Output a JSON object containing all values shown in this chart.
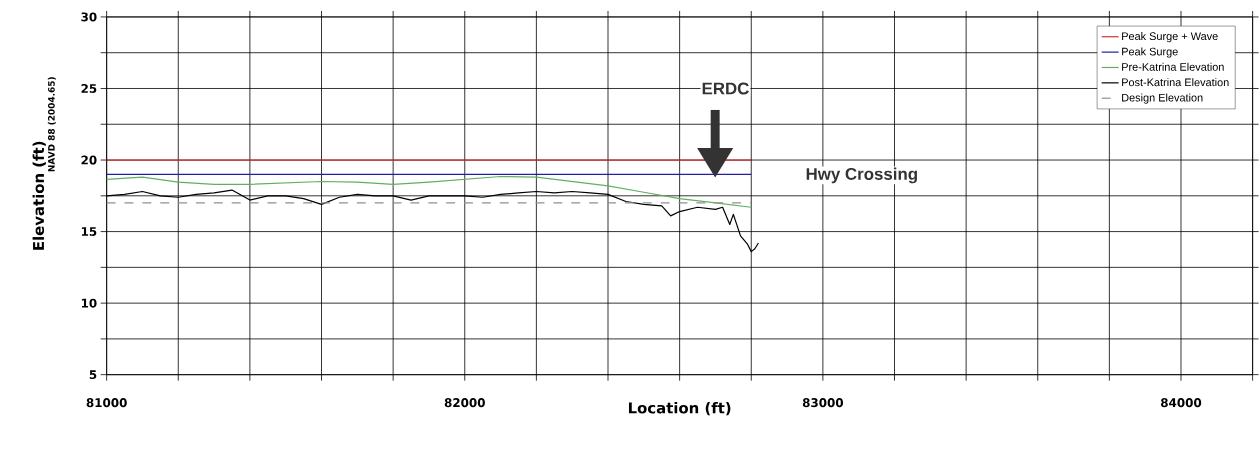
{
  "chart_data": {
    "type": "line",
    "xlabel": "Location (ft)",
    "ylabel": "Elevation (ft)",
    "annotations": [
      "NAVD 88 (2004.65)",
      "ERDC",
      "Hwy Crossing"
    ],
    "xlim": [
      81000,
      84200
    ],
    "ylim": [
      5,
      30
    ],
    "xticks": [
      81000,
      {
        "value": 81200,
        "label": null
      },
      {
        "value": 81400,
        "label": null
      },
      {
        "value": 81600,
        "label": null
      },
      {
        "value": 81800,
        "label": null
      },
      82000,
      {
        "value": 82200,
        "label": null
      },
      {
        "value": 82400,
        "label": null
      },
      {
        "value": 82600,
        "label": null
      },
      {
        "value": 82800,
        "label": null
      },
      83000,
      {
        "value": 83200,
        "label": null
      },
      {
        "value": 83400,
        "label": null
      },
      {
        "value": 83600,
        "label": null
      },
      {
        "value": 83800,
        "label": null
      },
      84000,
      {
        "value": 84200,
        "label": null
      }
    ],
    "yticks": [
      5,
      {
        "value": 7.5,
        "label": null
      },
      10,
      {
        "value": 12.5,
        "label": null
      },
      15,
      {
        "value": 17.5,
        "label": null
      },
      20,
      {
        "value": 22.5,
        "label": null
      },
      25,
      {
        "value": 27.5,
        "label": null
      },
      30
    ],
    "grid": true,
    "legend": "top right",
    "series": [
      {
        "name": "Peak Surge + Wave",
        "color": "#d03030",
        "x": [
          81000,
          82800
        ],
        "values": [
          20,
          20
        ]
      },
      {
        "name": "Peak Surge",
        "color": "#2020a0",
        "x": [
          81000,
          82800
        ],
        "values": [
          19,
          19
        ]
      },
      {
        "name": "Pre-Katrina Elevation",
        "color": "#60b060",
        "x": [
          81000,
          81100,
          81200,
          81300,
          81400,
          81500,
          81600,
          81700,
          81800,
          81900,
          82000,
          82100,
          82200,
          82300,
          82400,
          82500,
          82600,
          82700,
          82800
        ],
        "values": [
          18.65,
          18.8,
          18.45,
          18.3,
          18.3,
          18.4,
          18.5,
          18.45,
          18.3,
          18.45,
          18.65,
          18.85,
          18.8,
          18.5,
          18.2,
          17.75,
          17.3,
          17.0,
          16.7
        ]
      },
      {
        "name": "Post-Katrina Elevation",
        "color": "#000000",
        "x": [
          81000,
          81050,
          81100,
          81150,
          81200,
          81250,
          81300,
          81350,
          81400,
          81450,
          81500,
          81550,
          81600,
          81650,
          81700,
          81750,
          81800,
          81850,
          81900,
          81950,
          82000,
          82050,
          82100,
          82150,
          82200,
          82250,
          82300,
          82350,
          82400,
          82450,
          82500,
          82550,
          82575,
          82600,
          82650,
          82700,
          82720,
          82740,
          82750,
          82770,
          82790,
          82800,
          82810,
          82820
        ],
        "values": [
          17.5,
          17.6,
          17.8,
          17.5,
          17.4,
          17.6,
          17.7,
          17.9,
          17.2,
          17.5,
          17.5,
          17.3,
          16.9,
          17.4,
          17.6,
          17.5,
          17.5,
          17.2,
          17.5,
          17.5,
          17.5,
          17.4,
          17.6,
          17.7,
          17.8,
          17.7,
          17.8,
          17.7,
          17.6,
          17.1,
          16.9,
          16.8,
          16.1,
          16.4,
          16.7,
          16.55,
          16.7,
          15.5,
          16.2,
          14.7,
          14.1,
          13.6,
          13.8,
          14.2
        ]
      },
      {
        "name": "Design Elevation",
        "color": "#909090",
        "line_style": "dashed",
        "x": [
          81000,
          82800
        ],
        "values": [
          17,
          17
        ]
      }
    ]
  }
}
